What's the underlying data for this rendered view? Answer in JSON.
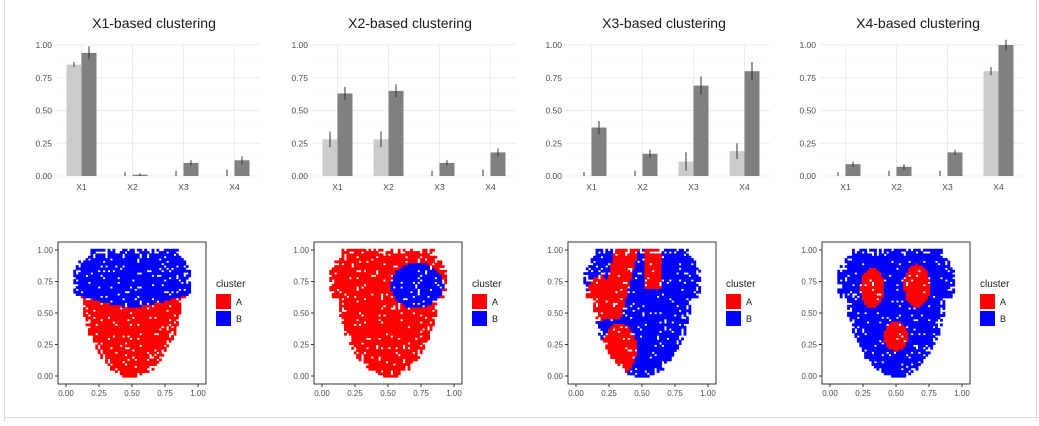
{
  "chart_data": [
    {
      "type": "bar",
      "title": "X1-based clustering",
      "categories": [
        "X1",
        "X2",
        "X3",
        "X4"
      ],
      "ylim": [
        0,
        1
      ],
      "yticks": [
        "0.00",
        "0.25",
        "0.50",
        "0.75",
        "1.00"
      ],
      "series": [
        {
          "values": [
            0.85,
            0.0,
            0.0,
            0.0
          ],
          "err": [
            0.02,
            0.03,
            0.04,
            0.05
          ],
          "color": "#cccccc"
        },
        {
          "values": [
            0.94,
            0.01,
            0.1,
            0.12
          ],
          "err": [
            0.05,
            0.01,
            0.02,
            0.03
          ],
          "color": "#808080"
        }
      ]
    },
    {
      "type": "bar",
      "title": "X2-based clustering",
      "categories": [
        "X1",
        "X2",
        "X3",
        "X4"
      ],
      "ylim": [
        0,
        1
      ],
      "yticks": [
        "0.00",
        "0.25",
        "0.50",
        "0.75",
        "1.00"
      ],
      "series": [
        {
          "values": [
            0.28,
            0.28,
            0.0,
            0.0
          ],
          "err": [
            0.06,
            0.06,
            0.04,
            0.05
          ],
          "color": "#cccccc"
        },
        {
          "values": [
            0.63,
            0.65,
            0.1,
            0.18
          ],
          "err": [
            0.05,
            0.05,
            0.02,
            0.03
          ],
          "color": "#808080"
        }
      ]
    },
    {
      "type": "bar",
      "title": "X3-based clustering",
      "categories": [
        "X1",
        "X2",
        "X3",
        "X4"
      ],
      "ylim": [
        0,
        1
      ],
      "yticks": [
        "0.00",
        "0.25",
        "0.50",
        "0.75",
        "1.00"
      ],
      "series": [
        {
          "values": [
            0.0,
            0.0,
            0.11,
            0.19
          ],
          "err": [
            0.03,
            0.04,
            0.07,
            0.06
          ],
          "color": "#cccccc"
        },
        {
          "values": [
            0.37,
            0.17,
            0.69,
            0.8
          ],
          "err": [
            0.05,
            0.03,
            0.07,
            0.07
          ],
          "color": "#808080"
        }
      ]
    },
    {
      "type": "bar",
      "title": "X4-based clustering",
      "categories": [
        "X1",
        "X2",
        "X3",
        "X4"
      ],
      "ylim": [
        0,
        1
      ],
      "yticks": [
        "0.00",
        "0.25",
        "0.50",
        "0.75",
        "1.00"
      ],
      "series": [
        {
          "values": [
            0.0,
            0.0,
            0.0,
            0.8
          ],
          "err": [
            0.03,
            0.04,
            0.04,
            0.03
          ],
          "color": "#cccccc"
        },
        {
          "values": [
            0.09,
            0.07,
            0.18,
            1.0
          ],
          "err": [
            0.02,
            0.02,
            0.02,
            0.04
          ],
          "color": "#808080"
        }
      ]
    },
    {
      "type": "scatter",
      "xlim": [
        0,
        1
      ],
      "ylim": [
        0,
        1
      ],
      "xticks": [
        "0.00",
        "0.25",
        "0.50",
        "0.75",
        "1.00"
      ],
      "yticks": [
        "0.00",
        "0.25",
        "0.50",
        "0.75",
        "1.00"
      ],
      "legend": {
        "title": "cluster",
        "labels": [
          "A",
          "B"
        ],
        "colors": [
          "#ff0000",
          "#0000ff"
        ],
        "position": "right"
      },
      "points": "pixel grid filling a heart-shaped domain; A = lower lobe (y < ~0.60), B = upper band"
    },
    {
      "type": "scatter",
      "xlim": [
        0,
        1
      ],
      "ylim": [
        0,
        1
      ],
      "xticks": [
        "0.00",
        "0.25",
        "0.50",
        "0.75",
        "1.00"
      ],
      "yticks": [
        "0.00",
        "0.25",
        "0.50",
        "0.75",
        "1.00"
      ],
      "legend": {
        "title": "cluster",
        "labels": [
          "A",
          "B"
        ],
        "colors": [
          "#ff0000",
          "#0000ff"
        ],
        "position": "right"
      },
      "points": "A covers most of the domain; B is an upper-right region around x≈0.7, y≈0.7"
    },
    {
      "type": "scatter",
      "xlim": [
        0,
        1
      ],
      "ylim": [
        0,
        1
      ],
      "xticks": [
        "0.00",
        "0.25",
        "0.50",
        "0.75",
        "1.00"
      ],
      "yticks": [
        "0.00",
        "0.25",
        "0.50",
        "0.75",
        "1.00"
      ],
      "legend": {
        "title": "cluster",
        "labels": [
          "A",
          "B"
        ],
        "colors": [
          "#ff0000",
          "#0000ff"
        ],
        "position": "right"
      },
      "points": "A forms a V-shape on the left arm and a lower-left patch; B covers the rest"
    },
    {
      "type": "scatter",
      "xlim": [
        0,
        1
      ],
      "ylim": [
        0,
        1
      ],
      "xticks": [
        "0.00",
        "0.25",
        "0.50",
        "0.75",
        "1.00"
      ],
      "yticks": [
        "0.00",
        "0.25",
        "0.50",
        "0.75",
        "1.00"
      ],
      "legend": {
        "title": "cluster",
        "labels": [
          "A",
          "B"
        ],
        "colors": [
          "#ff0000",
          "#0000ff"
        ],
        "position": "right"
      },
      "points": "A forms three small patches (upper-left, upper-right, lower-center); B covers the rest"
    }
  ]
}
